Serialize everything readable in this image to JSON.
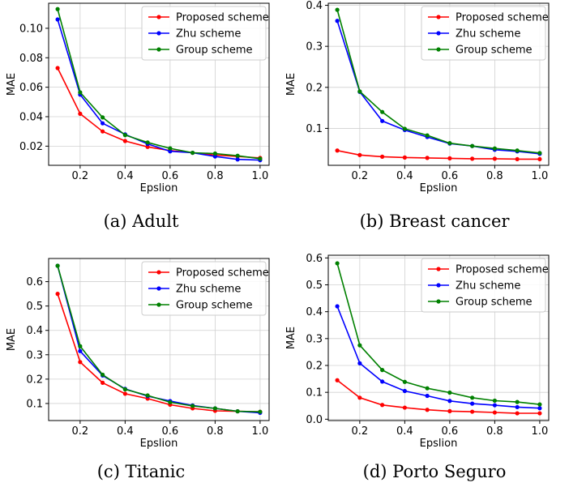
{
  "colors": {
    "proposed": "#ff0000",
    "zhu": "#0000ff",
    "group": "#008000",
    "grid": "#d0d0d0"
  },
  "chart_data": [
    {
      "type": "line",
      "caption": "(a) Adult",
      "xlabel": "Epslion",
      "ylabel": "MAE",
      "xlim": [
        0.06,
        1.04
      ],
      "ylim": [
        0.007,
        0.117
      ],
      "xticks": [
        0.2,
        0.4,
        0.6,
        0.8,
        1.0
      ],
      "xtick_labels": [
        "0.2",
        "0.4",
        "0.6",
        "0.8",
        "1.0"
      ],
      "yticks": [
        0.02,
        0.04,
        0.06,
        0.08,
        0.1
      ],
      "ytick_labels": [
        "0.02",
        "0.04",
        "0.06",
        "0.08",
        "0.10"
      ],
      "legend_position": "top-right",
      "grid": true,
      "x": [
        0.1,
        0.2,
        0.3,
        0.4,
        0.5,
        0.6,
        0.7,
        0.8,
        0.9,
        1.0
      ],
      "series": [
        {
          "name": "Proposed scheme",
          "color": "#ff0000",
          "values": [
            0.073,
            0.042,
            0.03,
            0.0235,
            0.0195,
            0.017,
            0.0155,
            0.014,
            0.013,
            0.012
          ]
        },
        {
          "name": "Zhu scheme",
          "color": "#0000ff",
          "values": [
            0.106,
            0.055,
            0.0355,
            0.028,
            0.0215,
            0.0165,
            0.0155,
            0.013,
            0.011,
            0.0105
          ]
        },
        {
          "name": "Group scheme",
          "color": "#008000",
          "values": [
            0.113,
            0.0565,
            0.0395,
            0.0275,
            0.0225,
            0.0185,
            0.0155,
            0.015,
            0.0135,
            0.0115
          ]
        }
      ]
    },
    {
      "type": "line",
      "caption": "(b) Breast cancer",
      "xlabel": "Epslion",
      "ylabel": "MAE",
      "xlim": [
        0.06,
        1.04
      ],
      "ylim": [
        0.01,
        0.405
      ],
      "xticks": [
        0.2,
        0.4,
        0.6,
        0.8,
        1.0
      ],
      "xtick_labels": [
        "0.2",
        "0.4",
        "0.6",
        "0.8",
        "1.0"
      ],
      "yticks": [
        0.1,
        0.2,
        0.3,
        0.4
      ],
      "ytick_labels": [
        "0.1",
        "0.2",
        "0.3",
        "0.4"
      ],
      "legend_position": "top-right",
      "grid": true,
      "x": [
        0.1,
        0.2,
        0.3,
        0.4,
        0.5,
        0.6,
        0.7,
        0.8,
        0.9,
        1.0
      ],
      "series": [
        {
          "name": "Proposed scheme",
          "color": "#ff0000",
          "values": [
            0.046,
            0.035,
            0.031,
            0.029,
            0.028,
            0.027,
            0.026,
            0.026,
            0.025,
            0.025
          ]
        },
        {
          "name": "Zhu scheme",
          "color": "#0000ff",
          "values": [
            0.362,
            0.189,
            0.118,
            0.096,
            0.079,
            0.063,
            0.057,
            0.048,
            0.044,
            0.038
          ]
        },
        {
          "name": "Group scheme",
          "color": "#008000",
          "values": [
            0.389,
            0.19,
            0.14,
            0.099,
            0.083,
            0.064,
            0.057,
            0.051,
            0.046,
            0.04
          ]
        }
      ]
    },
    {
      "type": "line",
      "caption": "(c) Titanic",
      "xlabel": "Epslion",
      "ylabel": "MAE",
      "xlim": [
        0.06,
        1.04
      ],
      "ylim": [
        0.03,
        0.695
      ],
      "xticks": [
        0.2,
        0.4,
        0.6,
        0.8,
        1.0
      ],
      "xtick_labels": [
        "0.2",
        "0.4",
        "0.6",
        "0.8",
        "1.0"
      ],
      "yticks": [
        0.1,
        0.2,
        0.3,
        0.4,
        0.5,
        0.6
      ],
      "ytick_labels": [
        "0.1",
        "0.2",
        "0.3",
        "0.4",
        "0.5",
        "0.6"
      ],
      "legend_position": "top-right",
      "grid": true,
      "x": [
        0.1,
        0.2,
        0.3,
        0.4,
        0.5,
        0.6,
        0.7,
        0.8,
        0.9,
        1.0
      ],
      "series": [
        {
          "name": "Proposed scheme",
          "color": "#ff0000",
          "values": [
            0.55,
            0.27,
            0.185,
            0.14,
            0.12,
            0.095,
            0.08,
            0.07,
            0.068,
            0.066
          ]
        },
        {
          "name": "Zhu scheme",
          "color": "#0000ff",
          "values": [
            0.665,
            0.315,
            0.215,
            0.16,
            0.13,
            0.11,
            0.092,
            0.08,
            0.068,
            0.062
          ]
        },
        {
          "name": "Group scheme",
          "color": "#008000",
          "values": [
            0.665,
            0.335,
            0.218,
            0.158,
            0.133,
            0.105,
            0.09,
            0.08,
            0.068,
            0.066
          ]
        }
      ]
    },
    {
      "type": "line",
      "caption": "(d) Porto Seguro",
      "xlabel": "Epslion",
      "ylabel": "MAE",
      "xlim": [
        0.06,
        1.04
      ],
      "ylim": [
        -0.005,
        0.61
      ],
      "xticks": [
        0.2,
        0.4,
        0.6,
        0.8,
        1.0
      ],
      "xtick_labels": [
        "0.2",
        "0.4",
        "0.6",
        "0.8",
        "1.0"
      ],
      "yticks": [
        0.0,
        0.1,
        0.2,
        0.3,
        0.4,
        0.5,
        0.6
      ],
      "ytick_labels": [
        "0.0",
        "0.1",
        "0.2",
        "0.3",
        "0.4",
        "0.5",
        "0.6"
      ],
      "legend_position": "top-right",
      "grid": true,
      "x": [
        0.1,
        0.2,
        0.3,
        0.4,
        0.5,
        0.6,
        0.7,
        0.8,
        0.9,
        1.0
      ],
      "series": [
        {
          "name": "Proposed scheme",
          "color": "#ff0000",
          "values": [
            0.145,
            0.08,
            0.053,
            0.043,
            0.035,
            0.03,
            0.028,
            0.025,
            0.022,
            0.022
          ]
        },
        {
          "name": "Zhu scheme",
          "color": "#0000ff",
          "values": [
            0.42,
            0.208,
            0.14,
            0.105,
            0.087,
            0.068,
            0.058,
            0.052,
            0.045,
            0.041
          ]
        },
        {
          "name": "Group scheme",
          "color": "#008000",
          "values": [
            0.58,
            0.275,
            0.183,
            0.139,
            0.115,
            0.099,
            0.08,
            0.069,
            0.064,
            0.055
          ]
        }
      ]
    }
  ]
}
